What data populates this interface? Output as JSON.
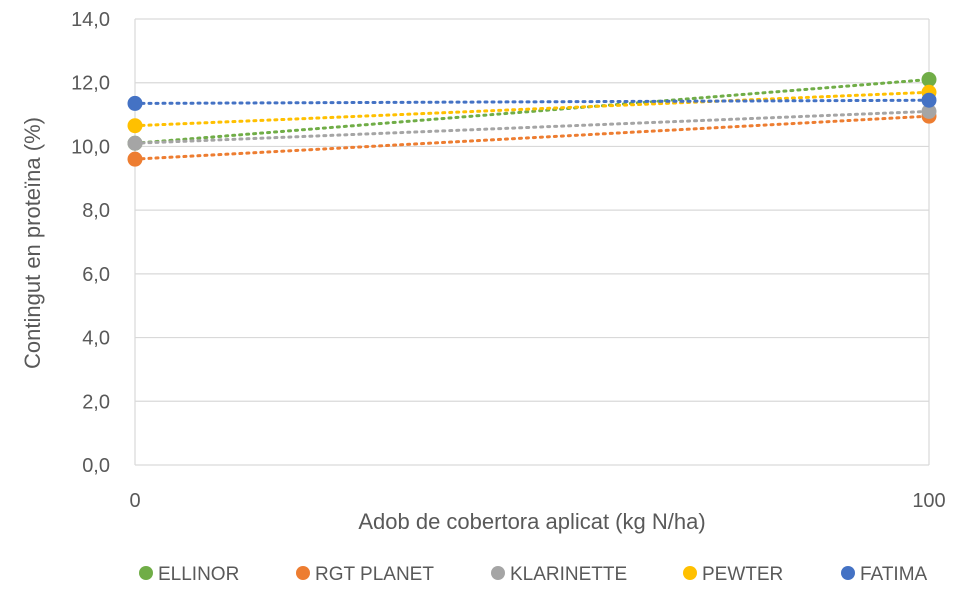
{
  "chart_data": {
    "type": "line",
    "xlabel": "Adob de cobertora aplicat (kg N/ha)",
    "ylabel": "Contingut en proteïna (%)",
    "x": [
      0,
      100
    ],
    "x_tick_labels": [
      "0",
      "100"
    ],
    "ylim": [
      0,
      14
    ],
    "y_ticks": [
      0,
      2,
      4,
      6,
      8,
      10,
      12,
      14
    ],
    "y_tick_labels": [
      "0,0",
      "2,0",
      "4,0",
      "6,0",
      "8,0",
      "10,0",
      "12,0",
      "14,0"
    ],
    "grid": true,
    "legend_position": "bottom",
    "line_style": "dotted",
    "series": [
      {
        "name": "ELLINOR",
        "color": "#70ad47",
        "values": [
          10.1,
          12.1
        ]
      },
      {
        "name": "RGT PLANET",
        "color": "#ed7d31",
        "values": [
          9.6,
          10.95
        ]
      },
      {
        "name": "KLARINETTE",
        "color": "#a5a5a5",
        "values": [
          10.1,
          11.1
        ]
      },
      {
        "name": "PEWTER",
        "color": "#ffc000",
        "values": [
          10.65,
          11.7
        ]
      },
      {
        "name": "FATIMA",
        "color": "#4472c4",
        "values": [
          11.35,
          11.45
        ]
      }
    ]
  }
}
